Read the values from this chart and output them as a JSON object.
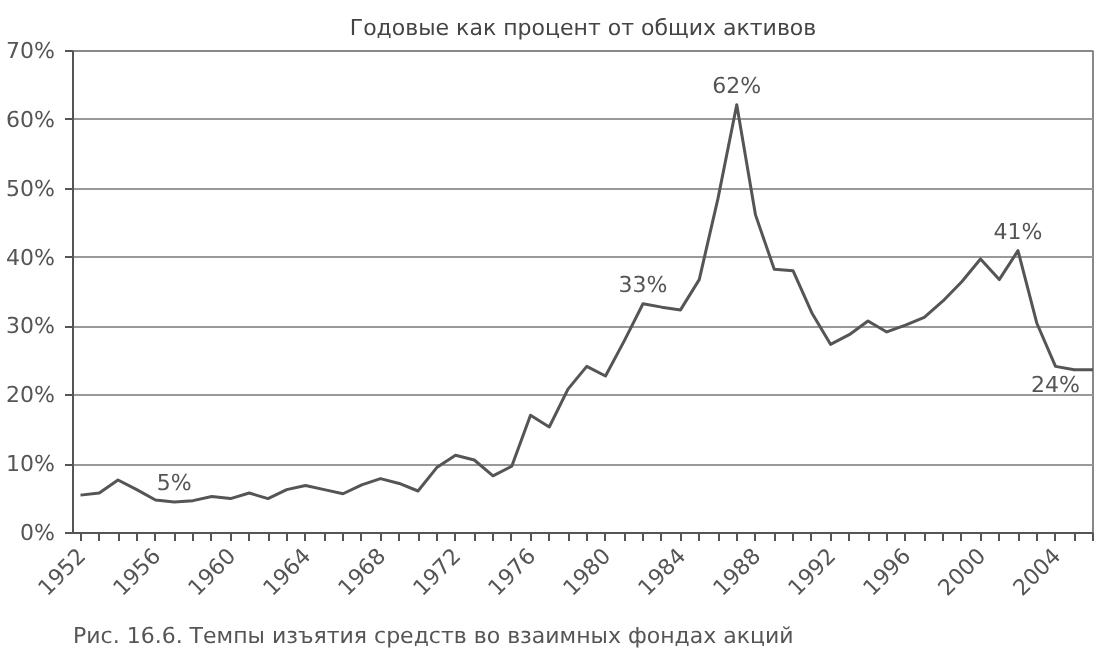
{
  "chart_data": {
    "type": "line",
    "title": "Годовые как процент от общих активов",
    "x": [
      1952,
      1953,
      1954,
      1955,
      1956,
      1957,
      1958,
      1959,
      1960,
      1961,
      1962,
      1963,
      1964,
      1965,
      1966,
      1967,
      1968,
      1969,
      1970,
      1971,
      1972,
      1973,
      1974,
      1975,
      1976,
      1977,
      1978,
      1979,
      1980,
      1981,
      1982,
      1983,
      1984,
      1985,
      1986,
      1987,
      1988,
      1989,
      1990,
      1991,
      1992,
      1993,
      1994,
      1995,
      1996,
      1997,
      1998,
      1999,
      2000,
      2001,
      2002,
      2003,
      2004,
      2005,
      2006
    ],
    "series": [
      {
        "color": "#555555",
        "values": [
          5.5,
          5.8,
          7.7,
          6.3,
          4.8,
          4.5,
          4.7,
          5.3,
          5.0,
          5.8,
          5.0,
          6.3,
          6.9,
          6.3,
          5.7,
          7.0,
          7.9,
          7.2,
          6.1,
          9.5,
          11.3,
          10.6,
          8.3,
          9.7,
          17.1,
          15.4,
          20.9,
          24.2,
          22.8,
          27.9,
          33.3,
          32.8,
          32.4,
          36.8,
          48.6,
          62.2,
          46.2,
          38.3,
          38.1,
          32.0,
          27.4,
          28.8,
          30.8,
          29.2,
          30.2,
          31.3,
          33.7,
          36.5,
          39.8,
          36.8,
          41.0,
          30.5,
          24.2,
          23.7,
          23.7
        ]
      }
    ],
    "xlim": [
      1951.6,
      2006
    ],
    "xticks": [
      1952,
      {
        "value": 1953,
        "label": null
      },
      {
        "value": 1954,
        "label": null
      },
      {
        "value": 1955,
        "label": null
      },
      1956,
      {
        "value": 1957,
        "label": null
      },
      {
        "value": 1958,
        "label": null
      },
      {
        "value": 1959,
        "label": null
      },
      1960,
      {
        "value": 1961,
        "label": null
      },
      {
        "value": 1962,
        "label": null
      },
      {
        "value": 1963,
        "label": null
      },
      1964,
      {
        "value": 1965,
        "label": null
      },
      {
        "value": 1966,
        "label": null
      },
      {
        "value": 1967,
        "label": null
      },
      1968,
      {
        "value": 1969,
        "label": null
      },
      {
        "value": 1970,
        "label": null
      },
      {
        "value": 1971,
        "label": null
      },
      1972,
      {
        "value": 1973,
        "label": null
      },
      {
        "value": 1974,
        "label": null
      },
      {
        "value": 1975,
        "label": null
      },
      1976,
      {
        "value": 1977,
        "label": null
      },
      {
        "value": 1978,
        "label": null
      },
      {
        "value": 1979,
        "label": null
      },
      1980,
      {
        "value": 1981,
        "label": null
      },
      {
        "value": 1982,
        "label": null
      },
      {
        "value": 1983,
        "label": null
      },
      1984,
      {
        "value": 1985,
        "label": null
      },
      {
        "value": 1986,
        "label": null
      },
      {
        "value": 1987,
        "label": null
      },
      1988,
      {
        "value": 1989,
        "label": null
      },
      {
        "value": 1990,
        "label": null
      },
      {
        "value": 1991,
        "label": null
      },
      1992,
      {
        "value": 1993,
        "label": null
      },
      {
        "value": 1994,
        "label": null
      },
      {
        "value": 1995,
        "label": null
      },
      1996,
      {
        "value": 1997,
        "label": null
      },
      {
        "value": 1998,
        "label": null
      },
      {
        "value": 1999,
        "label": null
      },
      2000,
      {
        "value": 2001,
        "label": null
      },
      {
        "value": 2002,
        "label": null
      },
      {
        "value": 2003,
        "label": null
      },
      2004,
      {
        "value": 2005,
        "label": null
      },
      {
        "value": 2006,
        "label": null
      }
    ],
    "ylim": [
      0,
      70
    ],
    "yticks": [
      {
        "value": 0,
        "label": "0%"
      },
      {
        "value": 10,
        "label": "10%"
      },
      {
        "value": 20,
        "label": "20%"
      },
      {
        "value": 30,
        "label": "30%"
      },
      {
        "value": 40,
        "label": "40%"
      },
      {
        "value": 50,
        "label": "50%"
      },
      {
        "value": 60,
        "label": "60%"
      },
      {
        "value": 70,
        "label": "70%"
      }
    ],
    "grid": "y",
    "marker": "none",
    "line_style": "solid",
    "annotations": [
      {
        "text": "5%",
        "x": 1957,
        "y": 4.5
      },
      {
        "text": "33%",
        "x": 1982,
        "y": 33.3
      },
      {
        "text": "62%",
        "x": 1987,
        "y": 62.2
      },
      {
        "text": "41%",
        "x": 2002,
        "y": 41.0
      },
      {
        "text": "24%",
        "x": 2004,
        "y": 24.2
      },
      "Рис. 16.6. Темпы изъятия средств во взаимных фондах акций"
    ]
  }
}
